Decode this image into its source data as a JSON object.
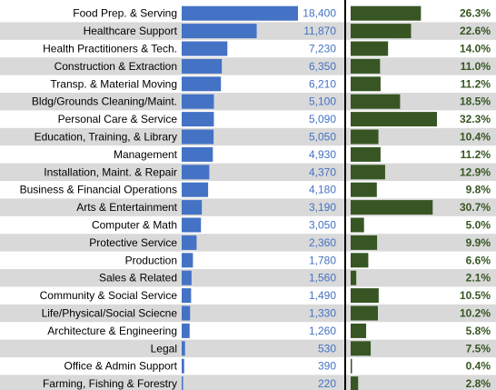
{
  "chart_data": {
    "type": "bar",
    "title": "",
    "xlabel": "",
    "ylabel": "",
    "categories": [
      "Food Prep. & Serving",
      "Healthcare Support",
      "Health Practitioners & Tech.",
      "Construction & Extraction",
      "Transp. & Material Moving",
      "Bldg/Grounds Cleaning/Maint.",
      "Personal Care & Service",
      "Education, Training, & Library",
      "Management",
      "Installation, Maint. & Repair",
      "Business & Financial Operations",
      "Arts & Entertainment",
      "Computer & Math",
      "Protective Service",
      "Production",
      "Sales & Related",
      "Community & Social Service",
      "Life/Physical/Social Sciecne",
      "Architecture & Engineering",
      "Legal",
      "Office & Admin Support",
      "Farming, Fishing & Forestry"
    ],
    "series": [
      {
        "values": [
          18400,
          11870,
          7230,
          6350,
          6210,
          5100,
          5090,
          5050,
          4930,
          4370,
          4180,
          3190,
          3050,
          2360,
          1780,
          1560,
          1490,
          1330,
          1260,
          530,
          390,
          220
        ],
        "labels": [
          "18,400",
          "11,870",
          "7,230",
          "6,350",
          "6,210",
          "5,100",
          "5,090",
          "5,050",
          "4,930",
          "4,370",
          "4,180",
          "3,190",
          "3,050",
          "2,360",
          "1,780",
          "1,560",
          "1,490",
          "1,330",
          "1,260",
          "530",
          "390",
          "220"
        ],
        "color": "#4472c4"
      },
      {
        "values": [
          26.3,
          22.6,
          14.0,
          11.0,
          11.2,
          18.5,
          32.3,
          10.4,
          11.2,
          12.9,
          9.8,
          30.7,
          5.0,
          9.9,
          6.6,
          2.1,
          10.5,
          10.2,
          5.8,
          7.5,
          0.4,
          2.8
        ],
        "labels": [
          "26.3%",
          "22.6%",
          "14.0%",
          "11.0%",
          "11.2%",
          "18.5%",
          "32.3%",
          "10.4%",
          "11.2%",
          "12.9%",
          "9.8%",
          "30.7%",
          "5.0%",
          "9.9%",
          "6.6%",
          "2.1%",
          "10.5%",
          "10.2%",
          "5.8%",
          "7.5%",
          "0.4%",
          "2.8%"
        ],
        "color": "#375623"
      }
    ],
    "row_band_color": "#d9d9d9",
    "value_label_color_1": "#4472c4",
    "value_label_color_2": "#375623",
    "divider_color": "#000000",
    "grid": false
  }
}
